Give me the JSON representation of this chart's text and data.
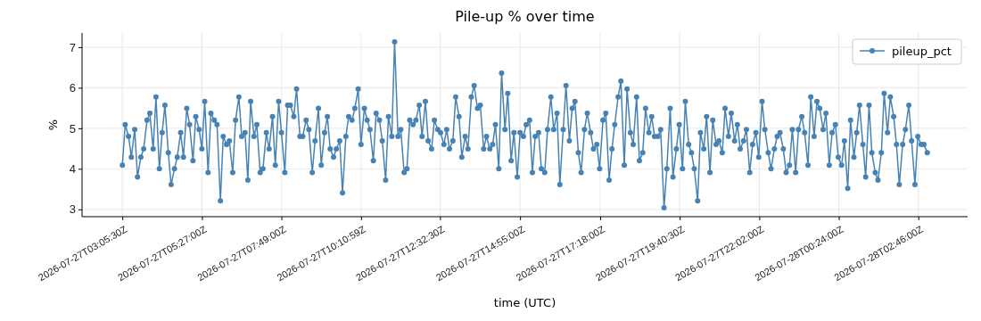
{
  "chart_data": {
    "type": "line",
    "title": "Pile-up % over time",
    "xlabel": "time (UTC)",
    "ylabel": "%",
    "x": [
      "2026-07-27T03:05",
      "2026-07-27T03:10",
      "2026-07-27T03:16",
      "2026-07-27T03:21",
      "2026-07-27T03:27",
      "2026-07-27T03:32",
      "2026-07-27T03:38",
      "2026-07-27T03:43",
      "2026-07-27T03:49",
      "2026-07-27T03:54",
      "2026-07-27T04:00",
      "2026-07-27T04:05",
      "2026-07-27T04:11",
      "2026-07-27T04:16",
      "2026-07-27T04:21",
      "2026-07-27T04:27",
      "2026-07-27T04:32",
      "2026-07-27T04:38",
      "2026-07-27T04:43",
      "2026-07-27T04:49",
      "2026-07-27T04:54",
      "2026-07-27T05:00",
      "2026-07-27T05:05",
      "2026-07-27T05:11",
      "2026-07-27T05:16",
      "2026-07-27T05:22",
      "2026-07-27T05:27",
      "2026-07-27T05:32",
      "2026-07-27T05:38",
      "2026-07-27T05:43",
      "2026-07-27T05:49",
      "2026-07-27T05:54",
      "2026-07-27T06:00",
      "2026-07-27T06:05",
      "2026-07-27T06:11",
      "2026-07-27T06:16",
      "2026-07-27T06:22",
      "2026-07-27T06:27",
      "2026-07-27T06:33",
      "2026-07-27T06:38",
      "2026-07-27T06:44",
      "2026-07-27T06:49",
      "2026-07-27T06:54",
      "2026-07-27T07:00",
      "2026-07-27T07:05",
      "2026-07-27T07:11",
      "2026-07-27T07:16",
      "2026-07-27T07:22",
      "2026-07-27T07:27",
      "2026-07-27T07:33",
      "2026-07-27T07:38",
      "2026-07-27T07:44",
      "2026-07-27T07:49",
      "2026-07-27T07:55",
      "2026-07-27T08:00",
      "2026-07-27T08:05",
      "2026-07-27T08:11",
      "2026-07-27T08:16",
      "2026-07-27T08:22",
      "2026-07-27T08:27",
      "2026-07-27T08:33",
      "2026-07-27T08:38",
      "2026-07-27T08:44",
      "2026-07-27T08:49",
      "2026-07-27T08:55",
      "2026-07-27T09:00",
      "2026-07-27T09:06",
      "2026-07-27T09:11",
      "2026-07-27T09:16",
      "2026-07-27T09:22",
      "2026-07-27T09:27",
      "2026-07-27T09:33",
      "2026-07-27T09:38",
      "2026-07-27T09:44",
      "2026-07-27T09:49",
      "2026-07-27T09:55",
      "2026-07-27T10:00",
      "2026-07-27T10:06",
      "2026-07-27T10:11",
      "2026-07-27T10:17",
      "2026-07-27T10:22",
      "2026-07-27T10:27",
      "2026-07-27T10:33",
      "2026-07-27T10:38",
      "2026-07-27T10:44",
      "2026-07-27T10:49",
      "2026-07-27T10:55",
      "2026-07-27T11:00",
      "2026-07-27T11:06",
      "2026-07-27T11:11",
      "2026-07-27T11:17",
      "2026-07-27T11:22",
      "2026-07-27T11:28",
      "2026-07-27T11:33",
      "2026-07-27T11:38",
      "2026-07-27T11:44",
      "2026-07-27T11:49",
      "2026-07-27T11:55",
      "2026-07-27T12:00",
      "2026-07-27T12:06",
      "2026-07-27T12:11",
      "2026-07-27T12:17",
      "2026-07-27T12:22",
      "2026-07-27T12:28",
      "2026-07-27T12:33",
      "2026-07-27T12:39",
      "2026-07-27T12:44",
      "2026-07-27T12:49",
      "2026-07-27T12:55",
      "2026-07-27T13:00",
      "2026-07-27T13:06",
      "2026-07-27T13:11",
      "2026-07-27T13:17",
      "2026-07-27T13:22",
      "2026-07-27T13:28",
      "2026-07-27T13:33",
      "2026-07-27T13:39",
      "2026-07-27T13:44",
      "2026-07-27T13:50",
      "2026-07-27T13:55",
      "2026-07-27T14:01",
      "2026-07-27T14:06",
      "2026-07-27T14:11",
      "2026-07-27T14:17",
      "2026-07-27T14:22",
      "2026-07-27T14:28",
      "2026-07-27T14:33",
      "2026-07-27T14:39",
      "2026-07-27T14:44",
      "2026-07-27T14:50",
      "2026-07-27T14:55",
      "2026-07-27T15:01",
      "2026-07-27T15:06",
      "2026-07-27T15:12",
      "2026-07-27T15:17",
      "2026-07-27T15:22",
      "2026-07-27T15:28",
      "2026-07-27T15:33",
      "2026-07-27T15:39",
      "2026-07-27T15:44",
      "2026-07-27T15:50",
      "2026-07-27T15:55",
      "2026-07-27T16:01",
      "2026-07-27T16:06",
      "2026-07-27T16:12",
      "2026-07-27T16:17",
      "2026-07-27T16:23",
      "2026-07-27T16:28",
      "2026-07-27T16:33",
      "2026-07-27T16:39",
      "2026-07-27T16:44",
      "2026-07-27T16:50",
      "2026-07-27T16:55",
      "2026-07-27T17:01",
      "2026-07-27T17:06",
      "2026-07-27T17:12",
      "2026-07-27T17:17",
      "2026-07-27T17:23",
      "2026-07-27T17:28",
      "2026-07-27T17:34",
      "2026-07-27T17:39",
      "2026-07-27T17:44",
      "2026-07-27T17:50",
      "2026-07-27T17:55",
      "2026-07-27T18:01",
      "2026-07-27T18:06",
      "2026-07-27T18:12",
      "2026-07-27T18:17",
      "2026-07-27T18:23",
      "2026-07-27T18:28",
      "2026-07-27T18:34",
      "2026-07-27T18:39",
      "2026-07-27T18:45",
      "2026-07-27T18:50",
      "2026-07-27T18:55",
      "2026-07-27T19:01",
      "2026-07-27T19:06",
      "2026-07-27T19:12",
      "2026-07-27T19:17",
      "2026-07-27T19:23",
      "2026-07-27T19:28",
      "2026-07-27T19:34",
      "2026-07-27T19:39",
      "2026-07-27T19:45",
      "2026-07-27T19:50",
      "2026-07-27T19:56",
      "2026-07-27T20:01",
      "2026-07-27T20:06",
      "2026-07-27T20:12",
      "2026-07-27T20:17",
      "2026-07-27T20:23",
      "2026-07-27T20:28",
      "2026-07-27T20:34",
      "2026-07-27T20:39",
      "2026-07-27T20:45",
      "2026-07-27T20:50",
      "2026-07-27T20:56",
      "2026-07-27T21:01",
      "2026-07-27T21:07",
      "2026-07-27T21:12",
      "2026-07-27T21:18",
      "2026-07-27T21:23",
      "2026-07-27T21:28",
      "2026-07-27T21:34",
      "2026-07-27T21:39",
      "2026-07-27T21:45",
      "2026-07-27T21:50",
      "2026-07-27T21:56",
      "2026-07-27T22:01",
      "2026-07-27T22:07",
      "2026-07-27T22:12",
      "2026-07-27T22:18",
      "2026-07-27T22:23",
      "2026-07-27T22:29",
      "2026-07-27T22:34",
      "2026-07-27T22:39",
      "2026-07-27T22:45",
      "2026-07-27T22:50",
      "2026-07-27T22:56",
      "2026-07-27T23:01",
      "2026-07-27T23:07",
      "2026-07-27T23:12",
      "2026-07-27T23:18",
      "2026-07-27T23:23",
      "2026-07-27T23:29",
      "2026-07-27T23:34",
      "2026-07-27T23:40",
      "2026-07-27T23:45",
      "2026-07-27T23:50",
      "2026-07-27T23:56",
      "2026-07-28T00:01",
      "2026-07-28T00:07",
      "2026-07-28T00:12",
      "2026-07-28T00:18",
      "2026-07-28T00:23",
      "2026-07-28T00:29",
      "2026-07-28T00:34",
      "2026-07-28T00:40",
      "2026-07-28T00:45",
      "2026-07-28T00:51",
      "2026-07-28T00:56",
      "2026-07-28T01:01",
      "2026-07-28T01:07",
      "2026-07-28T01:12",
      "2026-07-28T01:18",
      "2026-07-28T01:23",
      "2026-07-28T01:29",
      "2026-07-28T01:34",
      "2026-07-28T01:40",
      "2026-07-28T01:45",
      "2026-07-28T01:51",
      "2026-07-28T01:56",
      "2026-07-28T02:02",
      "2026-07-28T02:07",
      "2026-07-28T02:12",
      "2026-07-28T02:18",
      "2026-07-28T02:23",
      "2026-07-28T02:29",
      "2026-07-28T02:34",
      "2026-07-28T02:40",
      "2026-07-28T02:45",
      "2026-07-28T02:51",
      "2026-07-28T02:56",
      "2026-07-28T03:02"
    ],
    "series": [
      {
        "name": "pileup_pct",
        "color": "#4682b4",
        "values": [
          4.09,
          5.09,
          4.8,
          4.29,
          4.97,
          3.8,
          4.29,
          4.49,
          5.2,
          5.37,
          4.49,
          5.77,
          4.0,
          4.89,
          5.57,
          4.4,
          3.61,
          4.0,
          4.29,
          4.89,
          4.29,
          5.49,
          5.09,
          4.2,
          5.29,
          4.97,
          4.49,
          5.66,
          3.91,
          5.37,
          5.2,
          5.09,
          3.21,
          4.8,
          4.6,
          4.69,
          3.91,
          5.2,
          5.77,
          4.8,
          4.89,
          3.72,
          5.66,
          4.8,
          5.09,
          3.91,
          4.0,
          4.89,
          4.49,
          5.29,
          4.09,
          5.66,
          4.89,
          3.91,
          5.57,
          5.57,
          5.29,
          5.97,
          4.8,
          4.8,
          5.2,
          4.97,
          3.91,
          4.69,
          5.49,
          4.09,
          4.89,
          5.29,
          4.49,
          4.29,
          4.49,
          4.69,
          3.41,
          4.8,
          5.29,
          5.2,
          5.49,
          5.97,
          4.6,
          5.49,
          5.2,
          4.97,
          4.2,
          5.37,
          5.2,
          4.69,
          3.72,
          5.29,
          4.8,
          7.13,
          4.8,
          4.97,
          3.91,
          4.0,
          5.2,
          5.09,
          5.2,
          5.57,
          4.8,
          5.66,
          4.69,
          4.49,
          5.2,
          4.97,
          4.89,
          4.6,
          4.97,
          4.49,
          4.69,
          5.77,
          5.29,
          4.29,
          4.8,
          4.49,
          5.77,
          6.05,
          5.49,
          5.57,
          4.49,
          4.8,
          4.49,
          4.6,
          5.09,
          4.0,
          6.36,
          4.97,
          5.86,
          4.2,
          4.89,
          3.8,
          4.89,
          4.8,
          5.09,
          5.2,
          3.91,
          4.8,
          4.89,
          4.0,
          3.91,
          4.97,
          5.77,
          4.97,
          5.37,
          3.61,
          4.97,
          6.05,
          4.69,
          5.49,
          5.66,
          4.4,
          3.91,
          4.97,
          5.37,
          4.89,
          4.49,
          4.6,
          4.0,
          5.2,
          5.37,
          3.72,
          4.49,
          5.09,
          5.77,
          6.16,
          4.09,
          5.97,
          4.89,
          4.6,
          5.77,
          4.2,
          4.4,
          5.49,
          4.89,
          5.29,
          4.8,
          4.8,
          4.97,
          3.04,
          4.0,
          5.49,
          3.8,
          4.49,
          5.09,
          4.0,
          5.66,
          4.6,
          4.4,
          4.0,
          3.21,
          4.89,
          4.49,
          5.29,
          3.91,
          5.2,
          4.6,
          4.69,
          4.4,
          5.49,
          4.8,
          5.37,
          4.69,
          5.09,
          4.49,
          4.69,
          4.97,
          3.91,
          4.6,
          4.89,
          4.29,
          5.66,
          4.97,
          4.4,
          4.0,
          4.49,
          4.8,
          4.89,
          4.49,
          3.91,
          4.09,
          4.97,
          3.91,
          4.97,
          5.29,
          4.89,
          4.09,
          5.77,
          4.8,
          5.66,
          5.49,
          4.97,
          5.37,
          4.09,
          4.89,
          5.09,
          4.29,
          4.09,
          4.69,
          3.52,
          5.2,
          4.29,
          4.89,
          5.57,
          4.6,
          3.8,
          5.57,
          4.4,
          3.91,
          3.72,
          4.4,
          5.86,
          4.89,
          5.77,
          5.29,
          4.6,
          3.61,
          4.6,
          4.97,
          5.57,
          4.69,
          3.61,
          4.8,
          4.6,
          4.6,
          4.4
        ]
      }
    ],
    "xlim": [
      "2026-07-27T01:53",
      "2026-07-28T04:14"
    ],
    "xticks": [
      {
        "value": "2026-07-27T03:05",
        "label": "2026-07-27T03:05:30Z"
      },
      {
        "value": "2026-07-27T05:27",
        "label": "2026-07-27T05:27:00Z"
      },
      {
        "value": "2026-07-27T07:49",
        "label": "2026-07-27T07:49:00Z"
      },
      {
        "value": "2026-07-27T10:11",
        "label": "2026-07-27T10:10:59Z"
      },
      {
        "value": "2026-07-27T12:32",
        "label": "2026-07-27T12:32:30Z"
      },
      {
        "value": "2026-07-27T14:55",
        "label": "2026-07-27T14:55:00Z"
      },
      {
        "value": "2026-07-27T17:18",
        "label": "2026-07-27T17:18:00Z"
      },
      {
        "value": "2026-07-27T19:40",
        "label": "2026-07-27T19:40:30Z"
      },
      {
        "value": "2026-07-27T22:02",
        "label": "2026-07-27T22:02:00Z"
      },
      {
        "value": "2026-07-28T00:24",
        "label": "2026-07-28T00:24:00Z"
      },
      {
        "value": "2026-07-28T02:46",
        "label": "2026-07-28T02:46:00Z"
      }
    ],
    "ylim": [
      2.82,
      7.35
    ],
    "yticks": [
      3,
      4,
      5,
      6,
      7
    ],
    "grid": true,
    "legend": "top right",
    "marker": "circle",
    "line_style": "solid"
  }
}
